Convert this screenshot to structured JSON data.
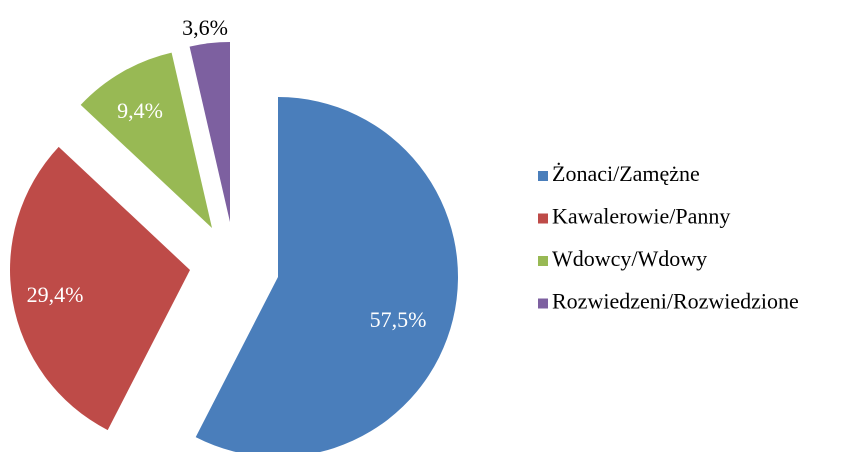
{
  "chart_data": {
    "type": "pie",
    "categories": [
      "Żonaci/Zamężne",
      "Kawalerowie/Panny",
      "Wdowcy/Wdowy",
      "Rozwiedzeni/Rozwiedzione"
    ],
    "values": [
      57.5,
      29.4,
      9.4,
      3.6
    ],
    "value_labels": [
      "57,5%",
      "29,4%",
      "9,4%",
      "3,6%"
    ],
    "colors": [
      "#4a7ebb",
      "#be4b48",
      "#98b954",
      "#7d60a0"
    ],
    "legend": "right"
  }
}
